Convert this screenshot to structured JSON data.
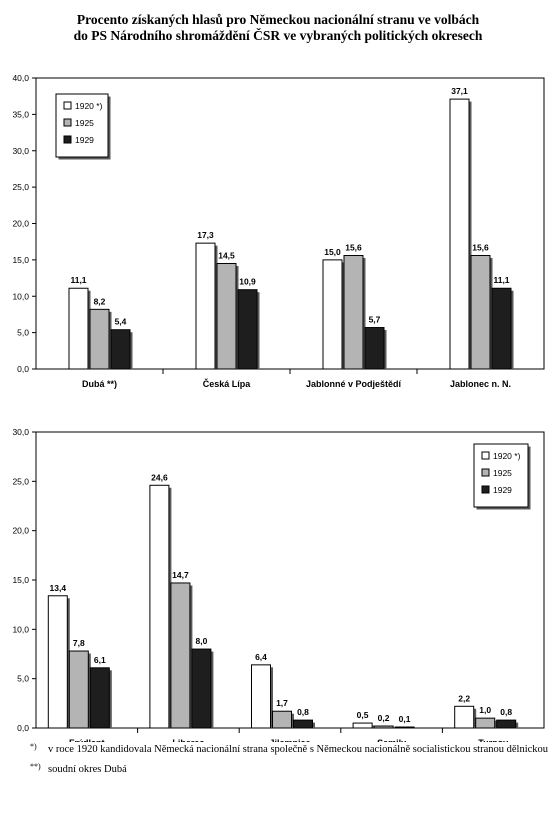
{
  "title_line1": "Procento získaných hlasů pro Německou nacionální stranu ve volbách",
  "title_line2": "do PS Národního shromáždění ČSR ve vybraných politických okresech",
  "chart_data": [
    {
      "type": "bar",
      "categories": [
        "Dubá **)",
        "Česká Lípa",
        "Jablonné v Podještědí",
        "Jablonec n. N."
      ],
      "series": [
        {
          "name": "1920 *)",
          "values": [
            11.1,
            17.3,
            15.0,
            37.1
          ],
          "color": "#ffffff"
        },
        {
          "name": "1925",
          "values": [
            8.2,
            14.5,
            15.6,
            15.6
          ],
          "color": "#b4b4b4"
        },
        {
          "name": "1929",
          "values": [
            5.4,
            10.9,
            5.7,
            11.1
          ],
          "color": "#1e1e1e"
        }
      ],
      "data_labels": [
        [
          "11,1",
          "17,3",
          "15,0",
          "37,1"
        ],
        [
          "8,2",
          "14,5",
          "15,6",
          "15,6"
        ],
        [
          "5,4",
          "10,9",
          "5,7",
          "11,1"
        ]
      ],
      "ylim": [
        0,
        40
      ],
      "yticks": [
        "0,0",
        "5,0",
        "10,0",
        "15,0",
        "20,0",
        "25,0",
        "30,0",
        "35,0",
        "40,0"
      ],
      "legend": "top-left",
      "grid": false
    },
    {
      "type": "bar",
      "categories": [
        "Frýdlant",
        "Liberec",
        "Jilemnice",
        "Semily",
        "Turnov"
      ],
      "series": [
        {
          "name": "1920 *)",
          "values": [
            13.4,
            24.6,
            6.4,
            0.5,
            2.2
          ],
          "color": "#ffffff"
        },
        {
          "name": "1925",
          "values": [
            7.8,
            14.7,
            1.7,
            0.2,
            1.0
          ],
          "color": "#b4b4b4"
        },
        {
          "name": "1929",
          "values": [
            6.1,
            8.0,
            0.8,
            0.1,
            0.8
          ],
          "color": "#1e1e1e"
        }
      ],
      "data_labels": [
        [
          "13,4",
          "24,6",
          "6,4",
          "0,5",
          "2,2"
        ],
        [
          "7,8",
          "14,7",
          "1,7",
          "0,2",
          "1,0"
        ],
        [
          "6,1",
          "8,0",
          "0,8",
          "0,1",
          "0,8"
        ]
      ],
      "ylim": [
        0,
        30
      ],
      "yticks": [
        "0,0",
        "5,0",
        "10,0",
        "15,0",
        "20,0",
        "25,0",
        "30,0"
      ],
      "legend": "top-right",
      "grid": false
    }
  ],
  "footnotes": [
    {
      "mark": "*)",
      "text": "v roce 1920 kandidovala Německá nacionální strana společně s Německou nacionálně socialistickou stranou dělnickou"
    },
    {
      "mark": "**)",
      "text": "soudní okres Dubá"
    }
  ]
}
